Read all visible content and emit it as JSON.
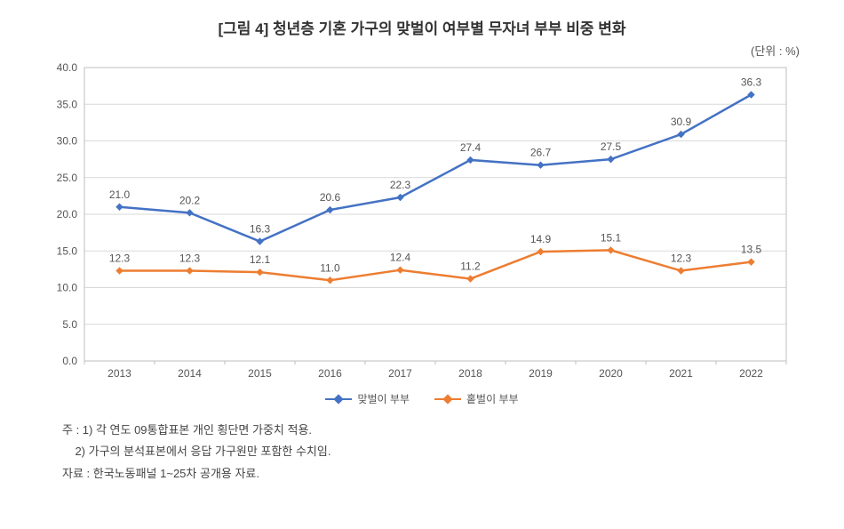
{
  "title": "[그림 4] 청년층 기혼 가구의 맞벌이 여부별 무자녀 부부 비중 변화",
  "unit_label": "(단위 : %)",
  "chart": {
    "type": "line",
    "categories": [
      "2013",
      "2014",
      "2015",
      "2016",
      "2017",
      "2018",
      "2019",
      "2020",
      "2021",
      "2022"
    ],
    "ylim": [
      0,
      40
    ],
    "ytick_step": 5,
    "y_decimals": 1,
    "background_color": "#ffffff",
    "plot_border_color": "#bfbfbf",
    "grid_color": "#d9d9d9",
    "axis_label_color": "#555555",
    "axis_label_fontsize": 12,
    "title_fontsize": 17,
    "unit_fontsize": 13,
    "data_label_fontsize": 12,
    "data_label_color": "#555555",
    "marker_size": 7,
    "line_width": 2.5,
    "series": [
      {
        "name": "맞벌이 부부",
        "color": "#4472c4",
        "values": [
          21.0,
          20.2,
          16.3,
          20.6,
          22.3,
          27.4,
          26.7,
          27.5,
          30.9,
          36.3
        ]
      },
      {
        "name": "홑벌이 부부",
        "color": "#ed7d31",
        "values": [
          12.3,
          12.3,
          12.1,
          11.0,
          12.4,
          11.2,
          14.9,
          15.1,
          12.3,
          13.5
        ]
      }
    ]
  },
  "notes": {
    "prefix_note": "주 : ",
    "prefix_source": "자료 : ",
    "fontsize": 13,
    "lines": [
      "1) 각 연도 09통합표본 개인 횡단면 가중치 적용.",
      "2) 가구의 분석표본에서 응답 가구원만 포함한 수치임."
    ],
    "source": "한국노동패널 1~25차 공개용 자료."
  }
}
